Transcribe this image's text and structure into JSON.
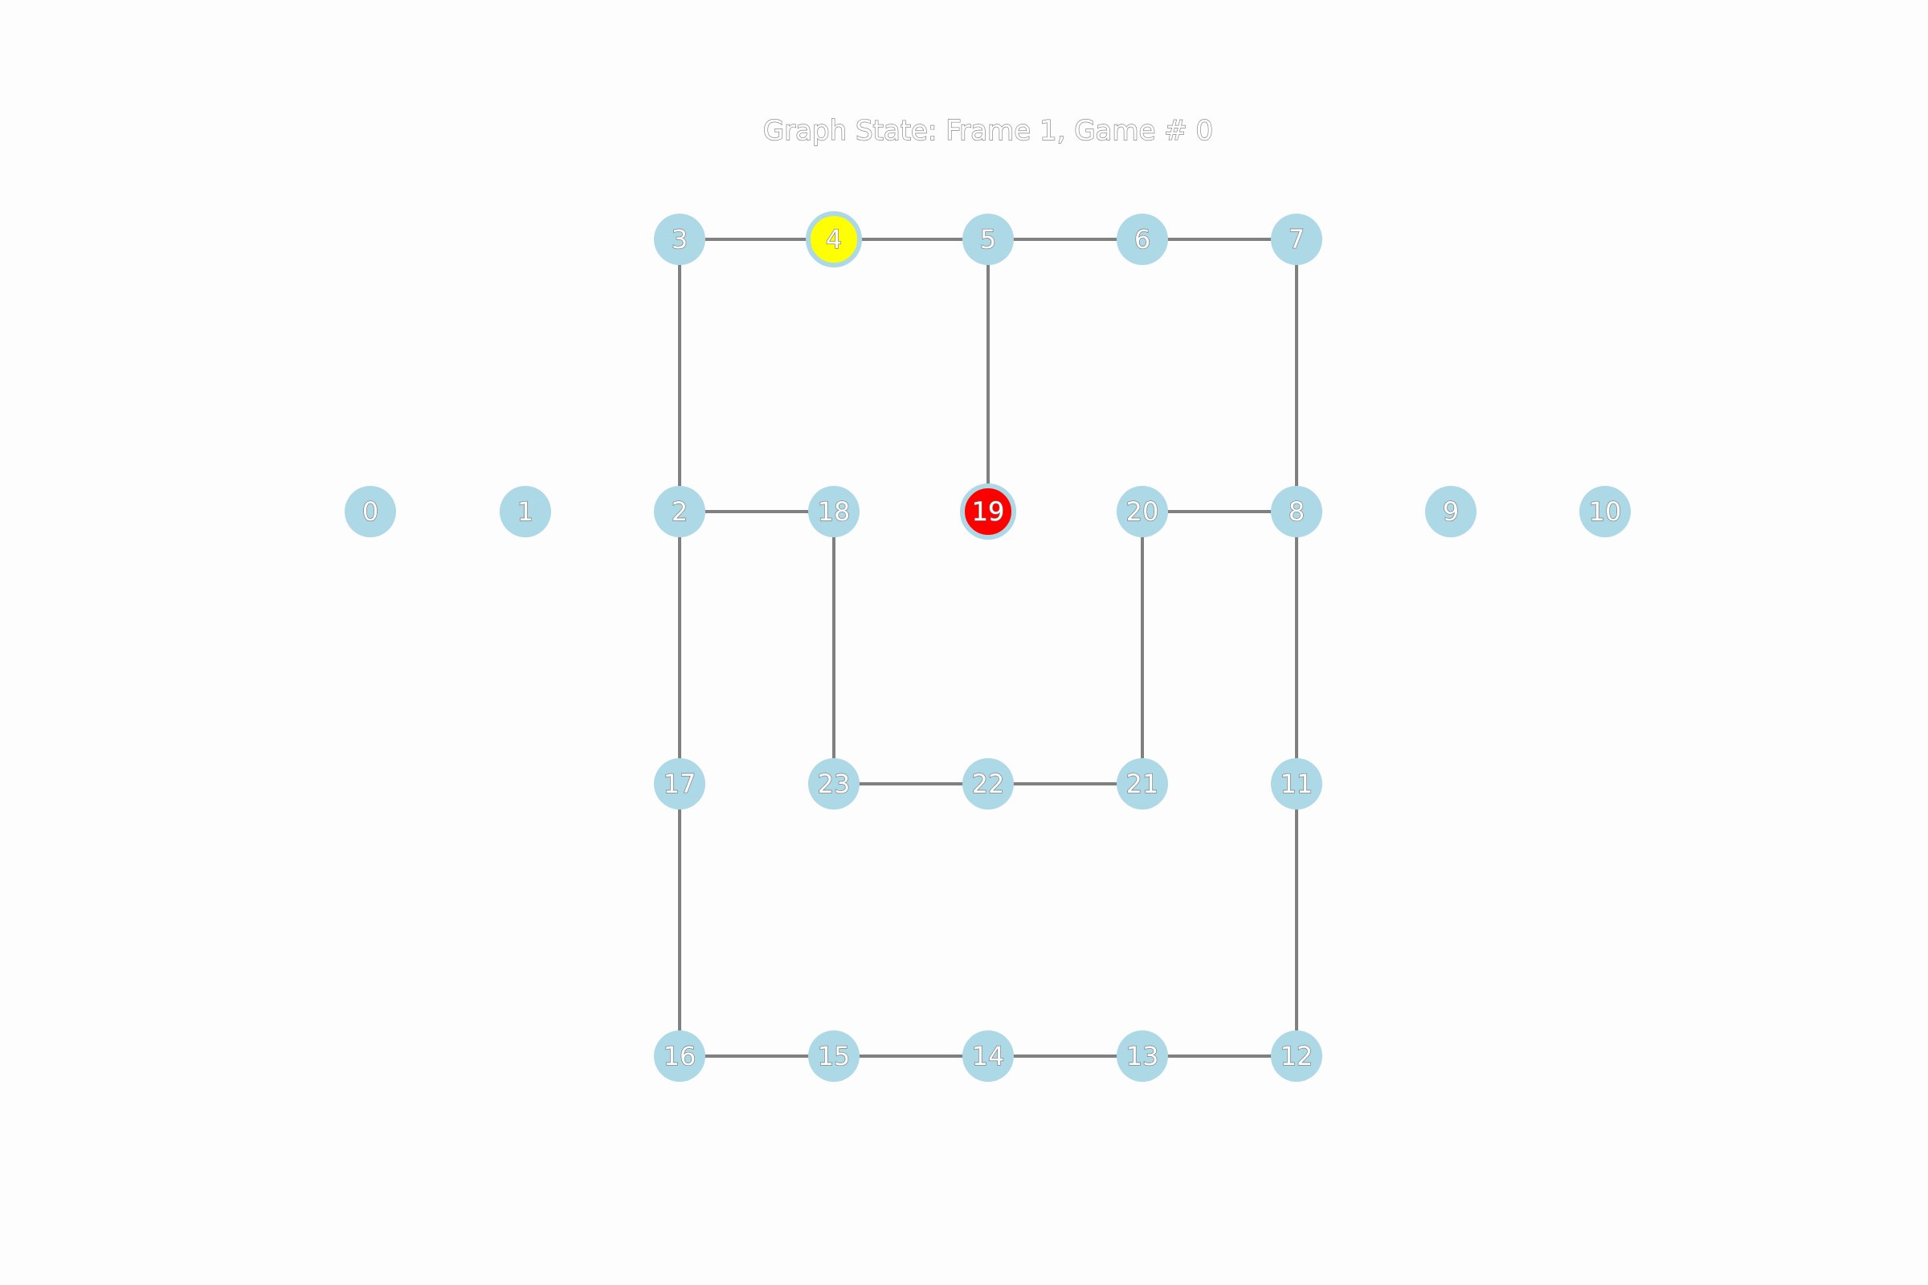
{
  "title": "Graph State: Frame 1, Game # 0",
  "colors": {
    "background": "#fdfdfd",
    "node_default": "#add8e6",
    "node_ring": "#add8e6",
    "edge": "#808080",
    "label_fill": "#ffffff",
    "label_outline": "#777777",
    "title_outline": "#8a8a8a"
  },
  "graph": {
    "nodes": [
      {
        "id": "0",
        "label": "0",
        "fill": "#add8e6"
      },
      {
        "id": "1",
        "label": "1",
        "fill": "#add8e6"
      },
      {
        "id": "2",
        "label": "2",
        "fill": "#add8e6"
      },
      {
        "id": "3",
        "label": "3",
        "fill": "#add8e6"
      },
      {
        "id": "4",
        "label": "4",
        "fill": "#ffff00"
      },
      {
        "id": "5",
        "label": "5",
        "fill": "#add8e6"
      },
      {
        "id": "6",
        "label": "6",
        "fill": "#add8e6"
      },
      {
        "id": "7",
        "label": "7",
        "fill": "#add8e6"
      },
      {
        "id": "8",
        "label": "8",
        "fill": "#add8e6"
      },
      {
        "id": "9",
        "label": "9",
        "fill": "#add8e6"
      },
      {
        "id": "10",
        "label": "10",
        "fill": "#add8e6"
      },
      {
        "id": "11",
        "label": "11",
        "fill": "#add8e6"
      },
      {
        "id": "12",
        "label": "12",
        "fill": "#add8e6"
      },
      {
        "id": "13",
        "label": "13",
        "fill": "#add8e6"
      },
      {
        "id": "14",
        "label": "14",
        "fill": "#add8e6"
      },
      {
        "id": "15",
        "label": "15",
        "fill": "#add8e6"
      },
      {
        "id": "16",
        "label": "16",
        "fill": "#add8e6"
      },
      {
        "id": "17",
        "label": "17",
        "fill": "#add8e6"
      },
      {
        "id": "18",
        "label": "18",
        "fill": "#add8e6"
      },
      {
        "id": "19",
        "label": "19",
        "fill": "#ff0000"
      },
      {
        "id": "20",
        "label": "20",
        "fill": "#add8e6"
      },
      {
        "id": "21",
        "label": "21",
        "fill": "#add8e6"
      },
      {
        "id": "22",
        "label": "22",
        "fill": "#add8e6"
      },
      {
        "id": "23",
        "label": "23",
        "fill": "#add8e6"
      }
    ],
    "edges": [
      [
        "3",
        "4"
      ],
      [
        "4",
        "5"
      ],
      [
        "5",
        "6"
      ],
      [
        "6",
        "7"
      ],
      [
        "3",
        "2"
      ],
      [
        "5",
        "19"
      ],
      [
        "7",
        "8"
      ],
      [
        "2",
        "18"
      ],
      [
        "20",
        "8"
      ],
      [
        "2",
        "17"
      ],
      [
        "18",
        "23"
      ],
      [
        "20",
        "21"
      ],
      [
        "8",
        "11"
      ],
      [
        "23",
        "22"
      ],
      [
        "22",
        "21"
      ],
      [
        "17",
        "16"
      ],
      [
        "11",
        "12"
      ],
      [
        "16",
        "15"
      ],
      [
        "15",
        "14"
      ],
      [
        "14",
        "13"
      ],
      [
        "13",
        "12"
      ]
    ]
  }
}
